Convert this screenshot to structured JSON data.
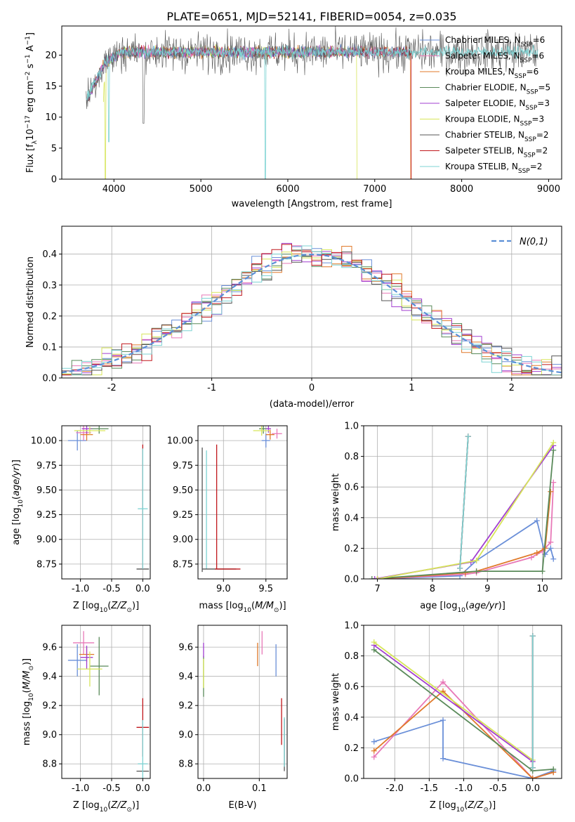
{
  "figure": {
    "title": "PLATE=0651, MJD=52141, FIBERID=0054, z=0.035"
  },
  "series_styles": [
    {
      "name": "Chabrier MILES",
      "color": "#6a8fd8"
    },
    {
      "name": "Salpeter MILES",
      "color": "#e879b8"
    },
    {
      "name": "Kroupa MILES",
      "color": "#e0792a"
    },
    {
      "name": "Chabrier ELODIE",
      "color": "#5a8a5a"
    },
    {
      "name": "Salpeter ELODIE",
      "color": "#a23fd0"
    },
    {
      "name": "Kroupa ELODIE",
      "color": "#d7e55a"
    },
    {
      "name": "Chabrier STELIB",
      "color": "#555555"
    },
    {
      "name": "Salpeter STELIB",
      "color": "#c0161b"
    },
    {
      "name": "Kroupa STELIB",
      "color": "#7dd3d3"
    }
  ],
  "chart_data": [
    {
      "type": "line",
      "title": "PLATE=0651, MJD=52141, FIBERID=0054, z=0.035",
      "xlabel": "wavelength [Angstrom, rest frame]",
      "ylabel": "Flux [f_λ 10^-17 erg cm^-2 s^-1 A^-1]",
      "xlim": [
        3400,
        9150
      ],
      "ylim": [
        0,
        24.7
      ],
      "xticks": [
        4000,
        5000,
        6000,
        7000,
        8000,
        9000
      ],
      "yticks": [
        0,
        5,
        10,
        15,
        20
      ],
      "legend_position": "right",
      "legend": [
        {
          "label": "Chabrier MILES, N",
          "sub": "SSP",
          "suffix": "=6"
        },
        {
          "label": "Salpeter MILES, N",
          "sub": "SSP",
          "suffix": "=6"
        },
        {
          "label": "Kroupa MILES, N",
          "sub": "SSP",
          "suffix": "=6"
        },
        {
          "label": "Chabrier ELODIE, N",
          "sub": "SSP",
          "suffix": "=5"
        },
        {
          "label": "Salpeter ELODIE, N",
          "sub": "SSP",
          "suffix": "=3"
        },
        {
          "label": "Kroupa ELODIE, N",
          "sub": "SSP",
          "suffix": "=3"
        },
        {
          "label": "Chabrier STELIB, N",
          "sub": "SSP",
          "suffix": "=2"
        },
        {
          "label": "Salpeter STELIB, N",
          "sub": "SSP",
          "suffix": "=2"
        },
        {
          "label": "Kroupa STELIB, N",
          "sub": "SSP",
          "suffix": "=2"
        }
      ],
      "spectrum_data": {
        "wavelength_range": [
          3680,
          8880
        ],
        "mean_flux": 20.5,
        "series_ends": [
          {
            "series": "Chabrier MILES",
            "start": 3700,
            "end": 7400
          },
          {
            "series": "Salpeter MILES",
            "start": 3700,
            "end": 7400
          },
          {
            "series": "Kroupa MILES",
            "start": 3700,
            "end": 7420
          },
          {
            "series": "Chabrier ELODIE",
            "start": 3700,
            "end": 6800
          },
          {
            "series": "Salpeter ELODIE",
            "start": 3700,
            "end": 6800
          },
          {
            "series": "Kroupa ELODIE",
            "start": 3880,
            "end": 6800
          },
          {
            "series": "Chabrier STELIB",
            "start": 3680,
            "end": 8880
          },
          {
            "series": "Salpeter STELIB",
            "start": 3700,
            "end": 7420
          },
          {
            "series": "Kroupa STELIB",
            "start": 3680,
            "end": 8880
          }
        ],
        "dips": [
          {
            "x": 3900,
            "y": 0,
            "series": "Kroupa ELODIE"
          },
          {
            "x": 3940,
            "y": 6.0,
            "series": "Kroupa STELIB"
          },
          {
            "x": 4340,
            "y": 9.0,
            "series": "Chabrier STELIB"
          },
          {
            "x": 5740,
            "y": 0,
            "series": "Kroupa STELIB"
          },
          {
            "x": 6800,
            "y": 0,
            "series": "Kroupa ELODIE"
          },
          {
            "x": 7420,
            "y": 0,
            "series": "Kroupa MILES"
          }
        ]
      }
    },
    {
      "type": "histogram",
      "xlabel": "(data-model)/error",
      "ylabel": "Normed distribution",
      "xlim": [
        -2.5,
        2.5
      ],
      "ylim": [
        0,
        0.49
      ],
      "xticks": [
        -2,
        -1,
        0,
        1,
        2
      ],
      "yticks": [
        0.0,
        0.1,
        0.2,
        0.3,
        0.4
      ],
      "grid": true,
      "legend_position": "top-right",
      "reference_curve": {
        "label": "N(0,1)",
        "mean": 0,
        "sigma": 1,
        "color": "#5b8fd6",
        "style": "dashed"
      },
      "bin_width": 0.1,
      "bin_edges_range": [
        -2.5,
        2.5
      ]
    },
    {
      "type": "scatter",
      "xlabel": "Z [log10(Z/Z_sun)]",
      "ylabel": "age [log10(age/yr)]",
      "xlim": [
        -1.3,
        0.12
      ],
      "ylim": [
        8.6,
        10.15
      ],
      "xticks": [
        -1.0,
        -0.5,
        0.0
      ],
      "yticks": [
        8.75,
        9.0,
        9.25,
        9.5,
        9.75,
        10.0
      ],
      "grid": true,
      "errorbars": [
        {
          "series": "Chabrier MILES",
          "x": -1.05,
          "y": 10.0,
          "xerr": 0.15,
          "yerr": 0.1
        },
        {
          "series": "Salpeter MILES",
          "x": -0.95,
          "y": 10.08,
          "xerr": 0.12,
          "yerr": 0.08
        },
        {
          "series": "Kroupa MILES",
          "x": -0.9,
          "y": 10.06,
          "xerr": 0.1,
          "yerr": 0.06
        },
        {
          "series": "Chabrier ELODIE",
          "x": -0.7,
          "y": 10.12,
          "xerr": 0.15,
          "yerr": 0.05
        },
        {
          "series": "Salpeter ELODIE",
          "x": -0.9,
          "y": 10.12,
          "xerr": 0.08,
          "yerr": 0.05
        },
        {
          "series": "Kroupa ELODIE",
          "x": -0.85,
          "y": 10.1,
          "xerr": 0.25,
          "yerr": 0.04
        },
        {
          "series": "Chabrier STELIB",
          "x": 0.0,
          "y": 8.7,
          "xerr": 0.1,
          "yerr": 0.0
        },
        {
          "series": "Salpeter STELIB",
          "x": 0.0,
          "y": 9.33,
          "xerr": 0.0,
          "yerr": 0.63
        },
        {
          "series": "Kroupa STELIB",
          "x": 0.0,
          "y": 9.31,
          "xerr": 0.08,
          "yerr": 0.61
        }
      ]
    },
    {
      "type": "scatter",
      "xlabel": "mass [log10(M/M_sun)]",
      "ylabel": "",
      "xlim": [
        8.7,
        9.75
      ],
      "ylim": [
        8.6,
        10.15
      ],
      "xticks": [
        9.0,
        9.5
      ],
      "yticks": [
        8.75,
        9.0,
        9.25,
        9.5,
        9.75,
        10.0
      ],
      "grid": true,
      "errorbars": [
        {
          "series": "Chabrier MILES",
          "x": 9.5,
          "y": 10.0,
          "xerr": 0.05,
          "yerr": 0.07
        },
        {
          "series": "Salpeter MILES",
          "x": 9.63,
          "y": 10.07,
          "xerr": 0.06,
          "yerr": 0.05
        },
        {
          "series": "Kroupa MILES",
          "x": 9.55,
          "y": 10.06,
          "xerr": 0.05,
          "yerr": 0.05
        },
        {
          "series": "Chabrier ELODIE",
          "x": 9.47,
          "y": 10.12,
          "xerr": 0.05,
          "yerr": 0.05
        },
        {
          "series": "Salpeter ELODIE",
          "x": 9.53,
          "y": 10.12,
          "xerr": 0.03,
          "yerr": 0.04
        },
        {
          "series": "Kroupa ELODIE",
          "x": 9.45,
          "y": 10.1,
          "xerr": 0.1,
          "yerr": 0.05
        },
        {
          "series": "Chabrier STELIB",
          "x": 8.75,
          "y": 9.3,
          "xerr": 0.0,
          "yerr": 0.63
        },
        {
          "series": "Salpeter STELIB",
          "x": 8.92,
          "y": 9.33,
          "xerr": 0.0,
          "yerr": 0.63
        },
        {
          "series": "Kroupa STELIB",
          "x": 8.8,
          "y": 9.3,
          "xerr": 0.0,
          "yerr": 0.6
        },
        {
          "series": "Chabrier STELIB",
          "x": 8.95,
          "y": 8.7,
          "xerr": 0.2,
          "yerr": 0.0
        },
        {
          "series": "Salpeter STELIB",
          "x": 9.05,
          "y": 8.7,
          "xerr": 0.15,
          "yerr": 0.0
        }
      ]
    },
    {
      "type": "line",
      "xlabel": "age [log10(age/yr)]",
      "ylabel": "mass weight",
      "xlim": [
        6.75,
        10.35
      ],
      "ylim": [
        0,
        1.0
      ],
      "xticks": [
        7,
        8,
        9,
        10
      ],
      "yticks": [
        0.0,
        0.2,
        0.4,
        0.6,
        0.8,
        1.0
      ],
      "grid": true,
      "series": [
        {
          "name": "Chabrier MILES",
          "x": [
            7.0,
            8.5,
            8.8,
            9.9,
            10.05,
            10.15,
            10.2
          ],
          "y": [
            0.0,
            0.02,
            0.12,
            0.38,
            0.16,
            0.2,
            0.13
          ]
        },
        {
          "name": "Salpeter MILES",
          "x": [
            7.0,
            8.6,
            8.8,
            9.8,
            10.0,
            10.15,
            10.2
          ],
          "y": [
            0.0,
            0.03,
            0.04,
            0.14,
            0.18,
            0.24,
            0.63
          ]
        },
        {
          "name": "Kroupa MILES",
          "x": [
            7.0,
            8.6,
            8.8,
            9.9,
            10.05,
            10.15
          ],
          "y": [
            0.0,
            0.04,
            0.05,
            0.17,
            0.2,
            0.57
          ]
        },
        {
          "name": "Chabrier ELODIE",
          "x": [
            6.9,
            8.8,
            10.0,
            10.2
          ],
          "y": [
            0.0,
            0.05,
            0.05,
            0.84
          ]
        },
        {
          "name": "Salpeter ELODIE",
          "x": [
            6.95,
            8.7,
            10.2
          ],
          "y": [
            0.0,
            0.11,
            0.87
          ]
        },
        {
          "name": "Kroupa ELODIE",
          "x": [
            7.0,
            8.8,
            10.2
          ],
          "y": [
            0.0,
            0.12,
            0.89
          ]
        },
        {
          "name": "Chabrier STELIB",
          "x": [
            8.5,
            8.65
          ],
          "y": [
            0.07,
            0.93
          ]
        },
        {
          "name": "Salpeter STELIB",
          "x": [
            8.5,
            8.65
          ],
          "y": [
            0.07,
            0.93
          ]
        },
        {
          "name": "Kroupa STELIB",
          "x": [
            8.5,
            8.65
          ],
          "y": [
            0.07,
            0.93
          ]
        }
      ]
    },
    {
      "type": "scatter",
      "xlabel": "Z [log10(Z/Z_sun)]",
      "ylabel": "mass [log10(M/M_sun)]",
      "xlim": [
        -1.3,
        0.12
      ],
      "ylim": [
        8.7,
        9.75
      ],
      "xticks": [
        -1.0,
        -0.5,
        0.0
      ],
      "yticks": [
        8.8,
        9.0,
        9.2,
        9.4,
        9.6
      ],
      "grid": true,
      "errorbars": [
        {
          "series": "Chabrier MILES",
          "x": -1.05,
          "y": 9.51,
          "xerr": 0.15,
          "yerr": 0.11
        },
        {
          "series": "Salpeter MILES",
          "x": -0.95,
          "y": 9.63,
          "xerr": 0.17,
          "yerr": 0.08
        },
        {
          "series": "Kroupa MILES",
          "x": -0.9,
          "y": 9.55,
          "xerr": 0.12,
          "yerr": 0.05
        },
        {
          "series": "Chabrier ELODIE",
          "x": -0.7,
          "y": 9.47,
          "xerr": 0.15,
          "yerr": 0.2
        },
        {
          "series": "Salpeter ELODIE",
          "x": -0.9,
          "y": 9.53,
          "xerr": 0.1,
          "yerr": 0.08
        },
        {
          "series": "Kroupa ELODIE",
          "x": -0.85,
          "y": 9.45,
          "xerr": 0.2,
          "yerr": 0.12
        },
        {
          "series": "Chabrier STELIB",
          "x": 0.0,
          "y": 8.75,
          "xerr": 0.1,
          "yerr": 0.0
        },
        {
          "series": "Salpeter STELIB",
          "x": 0.0,
          "y": 9.05,
          "xerr": 0.1,
          "yerr": 0.2
        },
        {
          "series": "Kroupa STELIB",
          "x": 0.0,
          "y": 8.8,
          "xerr": 0.08,
          "yerr": 0.3
        }
      ]
    },
    {
      "type": "scatter",
      "xlabel": "E(B-V)",
      "ylabel": "",
      "xlim": [
        -0.01,
        0.15
      ],
      "ylim": [
        8.7,
        9.75
      ],
      "xticks": [
        0.0,
        0.1
      ],
      "yticks": [
        8.8,
        9.0,
        9.2,
        9.4,
        9.6
      ],
      "grid": true,
      "errorbars": [
        {
          "series": "Chabrier MILES",
          "x": 0.13,
          "y": 9.51,
          "xerr": 0.0,
          "yerr": 0.11
        },
        {
          "series": "Salpeter MILES",
          "x": 0.105,
          "y": 9.63,
          "xerr": 0.0,
          "yerr": 0.08
        },
        {
          "series": "Kroupa MILES",
          "x": 0.097,
          "y": 9.55,
          "xerr": 0.0,
          "yerr": 0.08
        },
        {
          "series": "Chabrier ELODIE",
          "x": 0.0,
          "y": 9.4,
          "xerr": 0.0,
          "yerr": 0.14
        },
        {
          "series": "Salpeter ELODIE",
          "x": 0.0,
          "y": 9.58,
          "xerr": 0.0,
          "yerr": 0.05
        },
        {
          "series": "Kroupa ELODIE",
          "x": 0.0,
          "y": 9.42,
          "xerr": 0.0,
          "yerr": 0.1
        },
        {
          "series": "Chabrier STELIB",
          "x": 0.145,
          "y": 8.93,
          "xerr": 0.0,
          "yerr": 0.18
        },
        {
          "series": "Salpeter STELIB",
          "x": 0.14,
          "y": 9.09,
          "xerr": 0.0,
          "yerr": 0.16
        },
        {
          "series": "Kroupa STELIB",
          "x": 0.145,
          "y": 8.95,
          "xerr": 0.0,
          "yerr": 0.17
        }
      ]
    },
    {
      "type": "line",
      "xlabel": "Z [log10(Z/Z_sun)]",
      "ylabel": "mass weight",
      "xlim": [
        -2.45,
        0.42
      ],
      "ylim": [
        0,
        1.0
      ],
      "xticks": [
        -2.0,
        -1.5,
        -1.0,
        -0.5,
        0.0
      ],
      "yticks": [
        0.0,
        0.2,
        0.4,
        0.6,
        0.8,
        1.0
      ],
      "grid": true,
      "series": [
        {
          "name": "Chabrier MILES",
          "x": [
            -2.3,
            -1.3,
            -1.3,
            0.0,
            0.3
          ],
          "y": [
            0.24,
            0.38,
            0.13,
            0.0,
            0.05
          ]
        },
        {
          "name": "Salpeter MILES",
          "x": [
            -2.3,
            -1.3,
            0.0,
            0.3
          ],
          "y": [
            0.14,
            0.63,
            0.0,
            0.04
          ]
        },
        {
          "name": "Kroupa MILES",
          "x": [
            -2.3,
            -1.3,
            0.0,
            0.3
          ],
          "y": [
            0.18,
            0.57,
            0.0,
            0.04
          ]
        },
        {
          "name": "Chabrier ELODIE",
          "x": [
            -2.3,
            0.0,
            0.3
          ],
          "y": [
            0.84,
            0.05,
            0.06
          ]
        },
        {
          "name": "Salpeter ELODIE",
          "x": [
            -2.3,
            0.0
          ],
          "y": [
            0.87,
            0.11
          ]
        },
        {
          "name": "Kroupa ELODIE",
          "x": [
            -2.3,
            0.0
          ],
          "y": [
            0.89,
            0.12
          ]
        },
        {
          "name": "Chabrier STELIB",
          "x": [
            0.0,
            0.0
          ],
          "y": [
            0.07,
            0.93
          ]
        },
        {
          "name": "Salpeter STELIB",
          "x": [
            0.0,
            0.0
          ],
          "y": [
            0.07,
            0.93
          ]
        },
        {
          "name": "Kroupa STELIB",
          "x": [
            0.0,
            0.0
          ],
          "y": [
            0.07,
            0.93
          ]
        }
      ]
    }
  ]
}
